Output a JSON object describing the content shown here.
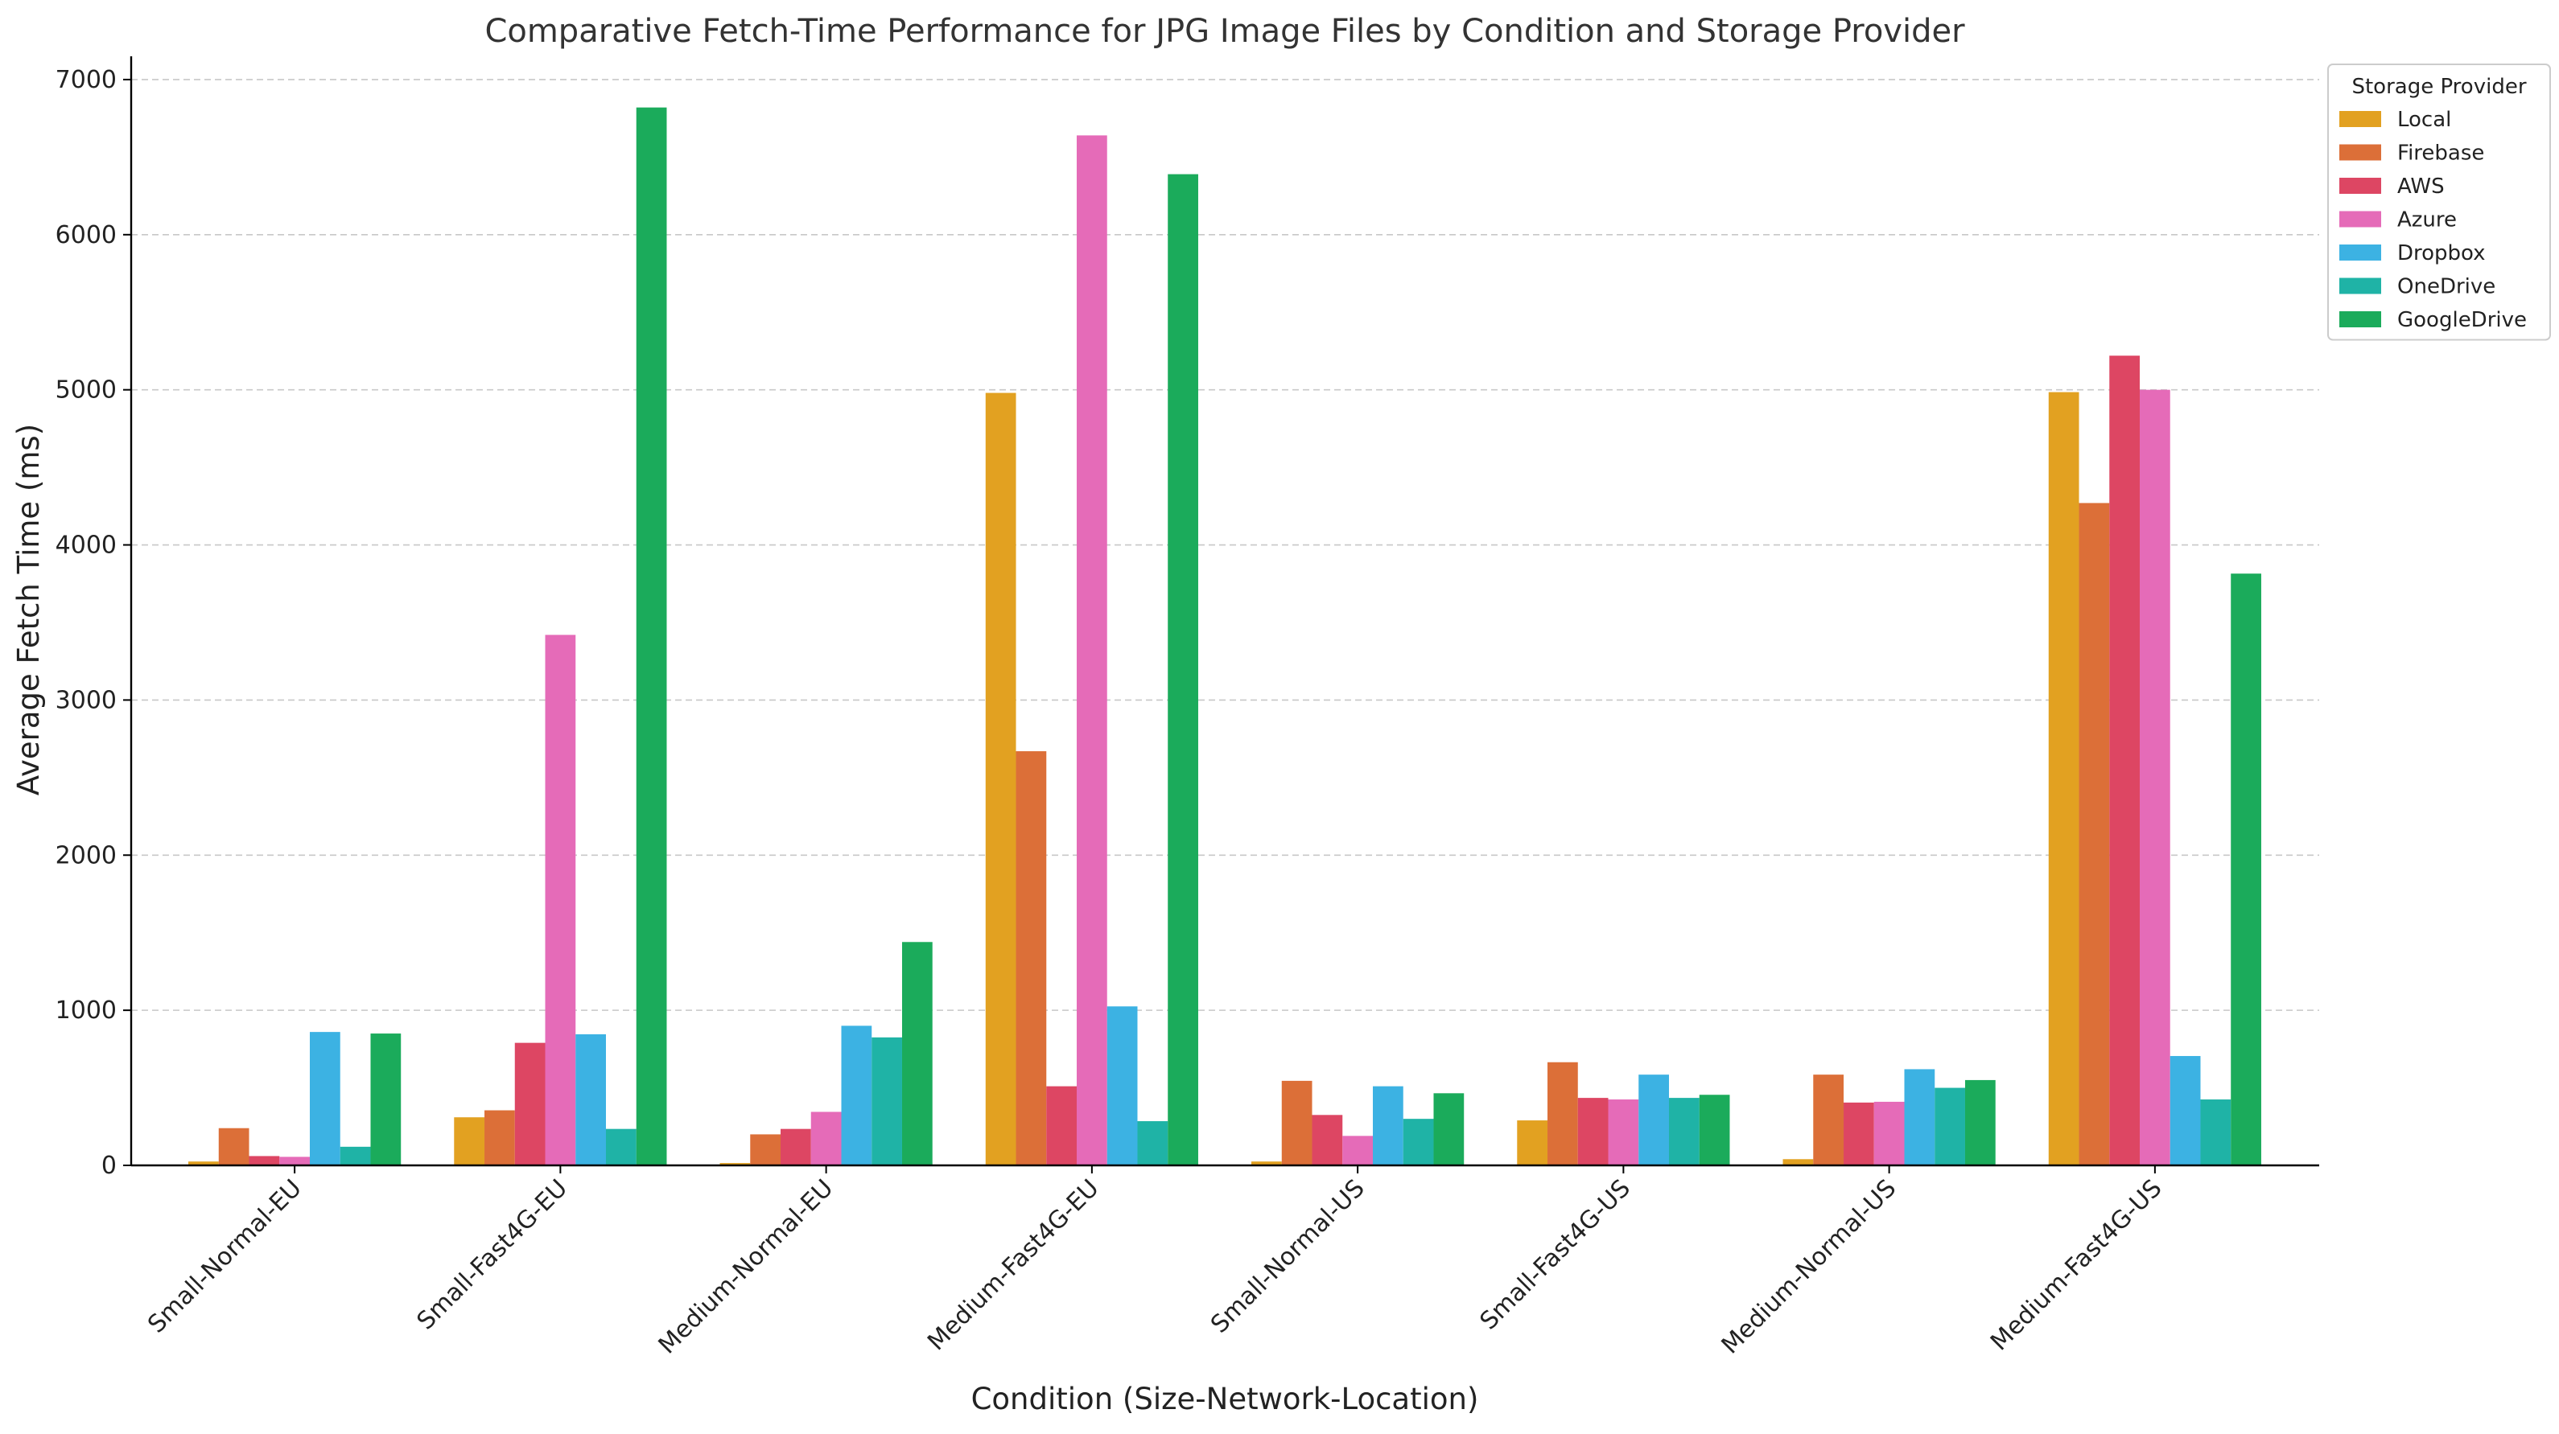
{
  "chart_data": {
    "type": "bar",
    "title": "Comparative Fetch-Time Performance for JPG Image Files by Condition and Storage Provider",
    "xlabel": "Condition (Size-Network-Location)",
    "ylabel": "Average Fetch Time (ms)",
    "ylim": [
      0,
      7150
    ],
    "yticks": [
      0,
      1000,
      2000,
      3000,
      4000,
      5000,
      6000,
      7000
    ],
    "grid": true,
    "legend": {
      "title": "Storage Provider",
      "placement": "upper-right-outside"
    },
    "categories": [
      "Small-Normal-EU",
      "Small-Fast4G-EU",
      "Medium-Normal-EU",
      "Medium-Fast4G-EU",
      "Small-Normal-US",
      "Small-Fast4G-US",
      "Medium-Normal-US",
      "Medium-Fast4G-US"
    ],
    "series": [
      {
        "name": "Local",
        "color": "#e2a121",
        "values": [
          25,
          310,
          15,
          4980,
          25,
          290,
          40,
          4985
        ]
      },
      {
        "name": "Firebase",
        "color": "#dc6f38",
        "values": [
          240,
          355,
          200,
          2670,
          545,
          665,
          585,
          4270
        ]
      },
      {
        "name": "AWS",
        "color": "#dd4663",
        "values": [
          60,
          790,
          235,
          510,
          325,
          435,
          405,
          5220
        ]
      },
      {
        "name": "Azure",
        "color": "#e56bb8",
        "values": [
          55,
          3420,
          345,
          6640,
          190,
          425,
          410,
          5000
        ]
      },
      {
        "name": "Dropbox",
        "color": "#3cb2e3",
        "values": [
          860,
          845,
          900,
          1025,
          510,
          585,
          620,
          705
        ]
      },
      {
        "name": "OneDrive",
        "color": "#1fb3a6",
        "values": [
          120,
          235,
          825,
          285,
          300,
          435,
          500,
          425
        ]
      },
      {
        "name": "GoogleDrive",
        "color": "#1bab5b",
        "values": [
          850,
          6820,
          1440,
          6390,
          465,
          455,
          550,
          3815
        ]
      }
    ]
  }
}
